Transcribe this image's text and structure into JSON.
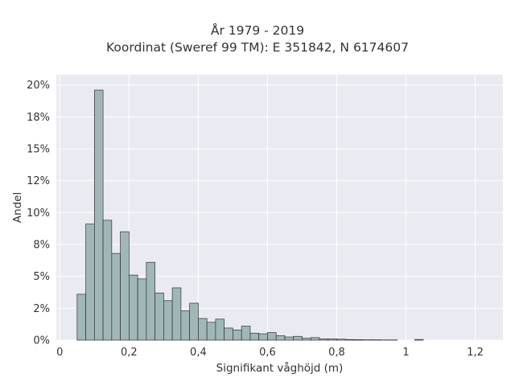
{
  "title_line1": "År 1979 - 2019",
  "title_line2": "Koordinat (Sweref 99 TM): E 351842, N 6174607",
  "chart_data": {
    "type": "bar",
    "title": "År 1979 - 2019\nKoordinat (Sweref 99 TM): E 351842, N 6174607",
    "xlabel": "Signifikant våghöjd (m)",
    "ylabel": "Andel",
    "xlim": [
      -0.01,
      1.28
    ],
    "ylim": [
      0,
      20.8
    ],
    "bin_width": 0.025,
    "x_ticks": [
      0,
      0.2,
      0.4,
      0.6,
      0.8,
      1.0,
      1.2
    ],
    "x_tick_labels": [
      "0",
      "0,2",
      "0,4",
      "0,6",
      "0,8",
      "1",
      "1,2"
    ],
    "y_ticks": [
      0,
      2.5,
      5,
      7.5,
      10,
      12.5,
      15,
      17.5,
      20
    ],
    "y_tick_labels": [
      "0%",
      "2%",
      "5%",
      "8%",
      "10%",
      "12%",
      "15%",
      "18%",
      "20%"
    ],
    "grid": true,
    "bar_color": "#9fb7b7",
    "bar_edge_color": "#333333",
    "plot_background": "#eaeaf2",
    "bins": [
      {
        "x0": 0.05,
        "value": 3.6
      },
      {
        "x0": 0.075,
        "value": 9.1
      },
      {
        "x0": 0.1,
        "value": 19.6
      },
      {
        "x0": 0.125,
        "value": 9.4
      },
      {
        "x0": 0.15,
        "value": 6.8
      },
      {
        "x0": 0.175,
        "value": 8.5
      },
      {
        "x0": 0.2,
        "value": 5.1
      },
      {
        "x0": 0.225,
        "value": 4.8
      },
      {
        "x0": 0.25,
        "value": 6.1
      },
      {
        "x0": 0.275,
        "value": 3.7
      },
      {
        "x0": 0.3,
        "value": 3.1
      },
      {
        "x0": 0.325,
        "value": 4.1
      },
      {
        "x0": 0.35,
        "value": 2.3
      },
      {
        "x0": 0.375,
        "value": 2.9
      },
      {
        "x0": 0.4,
        "value": 1.7
      },
      {
        "x0": 0.425,
        "value": 1.4
      },
      {
        "x0": 0.45,
        "value": 1.65
      },
      {
        "x0": 0.475,
        "value": 0.95
      },
      {
        "x0": 0.5,
        "value": 0.8
      },
      {
        "x0": 0.525,
        "value": 1.1
      },
      {
        "x0": 0.55,
        "value": 0.55
      },
      {
        "x0": 0.575,
        "value": 0.5
      },
      {
        "x0": 0.6,
        "value": 0.6
      },
      {
        "x0": 0.625,
        "value": 0.35
      },
      {
        "x0": 0.65,
        "value": 0.25
      },
      {
        "x0": 0.675,
        "value": 0.3
      },
      {
        "x0": 0.7,
        "value": 0.15
      },
      {
        "x0": 0.725,
        "value": 0.2
      },
      {
        "x0": 0.75,
        "value": 0.1
      },
      {
        "x0": 0.775,
        "value": 0.1
      },
      {
        "x0": 0.8,
        "value": 0.08
      },
      {
        "x0": 0.825,
        "value": 0.05
      },
      {
        "x0": 0.85,
        "value": 0.04
      },
      {
        "x0": 0.875,
        "value": 0.03
      },
      {
        "x0": 0.9,
        "value": 0.03
      },
      {
        "x0": 0.925,
        "value": 0.02
      },
      {
        "x0": 0.95,
        "value": 0.02
      },
      {
        "x0": 1.025,
        "value": 0.05
      }
    ]
  }
}
